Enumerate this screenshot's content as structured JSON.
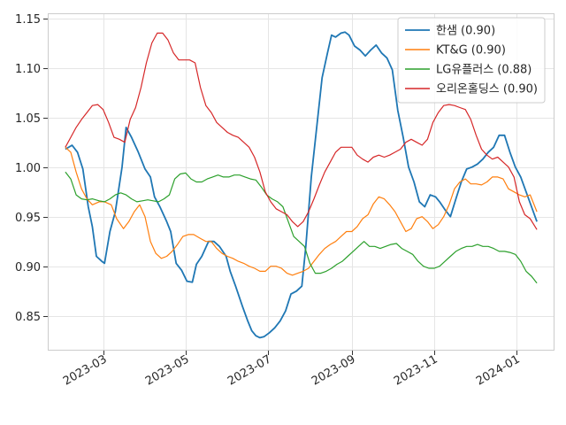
{
  "chart_data": {
    "type": "line",
    "title": "",
    "xlabel": "",
    "ylabel": "",
    "ylim": [
      0.815,
      1.155
    ],
    "xlim": [
      "2023-01-19",
      "2024-01-29"
    ],
    "grid": true,
    "legend_position": "top-right",
    "y_ticks": [
      {
        "value": 0.85,
        "label": "0.85"
      },
      {
        "value": 0.9,
        "label": "0.90"
      },
      {
        "value": 0.95,
        "label": "0.95"
      },
      {
        "value": 1.0,
        "label": "1.00"
      },
      {
        "value": 1.05,
        "label": "1.05"
      },
      {
        "value": 1.1,
        "label": "1.10"
      },
      {
        "value": 1.15,
        "label": "1.15"
      }
    ],
    "x_ticks": [
      {
        "value": "2023-03-01",
        "label": "2023-03"
      },
      {
        "value": "2023-05-01",
        "label": "2023-05"
      },
      {
        "value": "2023-07-01",
        "label": "2023-07"
      },
      {
        "value": "2023-09-01",
        "label": "2023-09"
      },
      {
        "value": "2023-11-01",
        "label": "2023-11"
      },
      {
        "value": "2024-01-01",
        "label": "2024-01"
      }
    ],
    "series": [
      {
        "name": "한샘 (0.90)",
        "color": "#1f77b4",
        "x": [
          "2023-02-01",
          "2023-02-06",
          "2023-02-10",
          "2023-02-14",
          "2023-02-18",
          "2023-02-21",
          "2023-02-24",
          "2023-02-28",
          "2023-03-02",
          "2023-03-06",
          "2023-03-10",
          "2023-03-15",
          "2023-03-18",
          "2023-03-22",
          "2023-03-27",
          "2023-04-01",
          "2023-04-05",
          "2023-04-08",
          "2023-04-12",
          "2023-04-17",
          "2023-04-20",
          "2023-04-24",
          "2023-04-28",
          "2023-05-02",
          "2023-05-06",
          "2023-05-09",
          "2023-05-13",
          "2023-05-18",
          "2023-05-22",
          "2023-05-26",
          "2023-05-31",
          "2023-06-03",
          "2023-06-07",
          "2023-06-12",
          "2023-06-16",
          "2023-06-19",
          "2023-06-22",
          "2023-06-25",
          "2023-06-28",
          "2023-07-02",
          "2023-07-06",
          "2023-07-10",
          "2023-07-14",
          "2023-07-18",
          "2023-07-22",
          "2023-07-26",
          "2023-07-29",
          "2023-08-02",
          "2023-08-06",
          "2023-08-10",
          "2023-08-14",
          "2023-08-17",
          "2023-08-20",
          "2023-08-24",
          "2023-08-27",
          "2023-08-30",
          "2023-09-03",
          "2023-09-07",
          "2023-09-11",
          "2023-09-15",
          "2023-09-19",
          "2023-09-23",
          "2023-09-27",
          "2023-10-01",
          "2023-10-05",
          "2023-10-09",
          "2023-10-13",
          "2023-10-17",
          "2023-10-21",
          "2023-10-25",
          "2023-10-29",
          "2023-11-02",
          "2023-11-05",
          "2023-11-09",
          "2023-11-13",
          "2023-11-17",
          "2023-11-21",
          "2023-11-25",
          "2023-11-29",
          "2023-12-03",
          "2023-12-07",
          "2023-12-11",
          "2023-12-15",
          "2023-12-19",
          "2023-12-23",
          "2023-12-27",
          "2023-12-31",
          "2024-01-04",
          "2024-01-08",
          "2024-01-12",
          "2024-01-16"
        ],
        "values": [
          1.018,
          1.022,
          1.015,
          0.998,
          0.96,
          0.94,
          0.91,
          0.905,
          0.903,
          0.935,
          0.955,
          1.0,
          1.04,
          1.03,
          1.015,
          0.998,
          0.99,
          0.97,
          0.96,
          0.945,
          0.935,
          0.903,
          0.896,
          0.885,
          0.884,
          0.902,
          0.91,
          0.925,
          0.925,
          0.92,
          0.91,
          0.895,
          0.88,
          0.86,
          0.845,
          0.835,
          0.83,
          0.828,
          0.829,
          0.833,
          0.838,
          0.845,
          0.855,
          0.872,
          0.875,
          0.88,
          0.92,
          0.99,
          1.04,
          1.09,
          1.115,
          1.133,
          1.131,
          1.135,
          1.136,
          1.133,
          1.122,
          1.118,
          1.112,
          1.118,
          1.123,
          1.115,
          1.11,
          1.098,
          1.057,
          1.03,
          1.0,
          0.985,
          0.965,
          0.96,
          0.972,
          0.97,
          0.965,
          0.957,
          0.95,
          0.968,
          0.985,
          0.998,
          1.0,
          1.003,
          1.008,
          1.015,
          1.02,
          1.032,
          1.032,
          1.015,
          1.0,
          0.99,
          0.975,
          0.96,
          0.945
        ]
      },
      {
        "name": "KT&G (0.90)",
        "color": "#ff7f0e",
        "x": [
          "2023-02-01",
          "2023-02-05",
          "2023-02-09",
          "2023-02-13",
          "2023-02-17",
          "2023-02-21",
          "2023-02-26",
          "2023-03-02",
          "2023-03-07",
          "2023-03-11",
          "2023-03-16",
          "2023-03-20",
          "2023-03-24",
          "2023-03-28",
          "2023-04-01",
          "2023-04-05",
          "2023-04-09",
          "2023-04-13",
          "2023-04-17",
          "2023-04-21",
          "2023-04-25",
          "2023-04-29",
          "2023-05-03",
          "2023-05-07",
          "2023-05-12",
          "2023-05-16",
          "2023-05-20",
          "2023-05-24",
          "2023-05-28",
          "2023-06-01",
          "2023-06-05",
          "2023-06-09",
          "2023-06-13",
          "2023-06-17",
          "2023-06-21",
          "2023-06-25",
          "2023-06-29",
          "2023-07-03",
          "2023-07-07",
          "2023-07-11",
          "2023-07-15",
          "2023-07-19",
          "2023-07-23",
          "2023-07-27",
          "2023-07-31",
          "2023-08-04",
          "2023-08-08",
          "2023-08-12",
          "2023-08-16",
          "2023-08-20",
          "2023-08-24",
          "2023-08-28",
          "2023-09-01",
          "2023-09-05",
          "2023-09-09",
          "2023-09-13",
          "2023-09-17",
          "2023-09-21",
          "2023-09-25",
          "2023-09-29",
          "2023-10-03",
          "2023-10-07",
          "2023-10-11",
          "2023-10-15",
          "2023-10-19",
          "2023-10-23",
          "2023-10-27",
          "2023-10-31",
          "2023-11-04",
          "2023-11-08",
          "2023-11-12",
          "2023-11-16",
          "2023-11-20",
          "2023-11-24",
          "2023-11-28",
          "2023-12-02",
          "2023-12-06",
          "2023-12-10",
          "2023-12-14",
          "2023-12-18",
          "2023-12-22",
          "2023-12-26",
          "2023-12-30",
          "2024-01-03",
          "2024-01-07",
          "2024-01-11",
          "2024-01-16"
        ],
        "values": [
          1.02,
          1.015,
          0.995,
          0.978,
          0.968,
          0.962,
          0.965,
          0.965,
          0.962,
          0.948,
          0.938,
          0.945,
          0.955,
          0.962,
          0.95,
          0.925,
          0.913,
          0.908,
          0.91,
          0.915,
          0.922,
          0.93,
          0.932,
          0.932,
          0.928,
          0.925,
          0.925,
          0.918,
          0.913,
          0.91,
          0.908,
          0.905,
          0.903,
          0.9,
          0.898,
          0.895,
          0.895,
          0.9,
          0.9,
          0.898,
          0.893,
          0.891,
          0.893,
          0.895,
          0.898,
          0.905,
          0.912,
          0.918,
          0.922,
          0.925,
          0.93,
          0.935,
          0.935,
          0.94,
          0.948,
          0.952,
          0.963,
          0.97,
          0.968,
          0.962,
          0.955,
          0.945,
          0.935,
          0.938,
          0.948,
          0.95,
          0.945,
          0.938,
          0.942,
          0.95,
          0.962,
          0.978,
          0.985,
          0.988,
          0.983,
          0.983,
          0.982,
          0.985,
          0.99,
          0.99,
          0.988,
          0.978,
          0.975,
          0.972,
          0.97,
          0.972,
          0.955
        ]
      },
      {
        "name": "LG유플러스 (0.88)",
        "color": "#2ca02c",
        "x": [
          "2023-02-01",
          "2023-02-05",
          "2023-02-09",
          "2023-02-13",
          "2023-02-17",
          "2023-02-21",
          "2023-02-26",
          "2023-03-02",
          "2023-03-06",
          "2023-03-10",
          "2023-03-14",
          "2023-03-18",
          "2023-03-22",
          "2023-03-26",
          "2023-03-30",
          "2023-04-03",
          "2023-04-07",
          "2023-04-11",
          "2023-04-15",
          "2023-04-19",
          "2023-04-23",
          "2023-04-27",
          "2023-05-01",
          "2023-05-05",
          "2023-05-09",
          "2023-05-13",
          "2023-05-17",
          "2023-05-21",
          "2023-05-25",
          "2023-05-29",
          "2023-06-02",
          "2023-06-06",
          "2023-06-10",
          "2023-06-14",
          "2023-06-18",
          "2023-06-22",
          "2023-06-26",
          "2023-06-30",
          "2023-07-04",
          "2023-07-08",
          "2023-07-12",
          "2023-07-16",
          "2023-07-20",
          "2023-07-24",
          "2023-07-28",
          "2023-08-01",
          "2023-08-05",
          "2023-08-09",
          "2023-08-13",
          "2023-08-17",
          "2023-08-21",
          "2023-08-25",
          "2023-08-29",
          "2023-09-02",
          "2023-09-06",
          "2023-09-10",
          "2023-09-14",
          "2023-09-18",
          "2023-09-22",
          "2023-09-26",
          "2023-09-30",
          "2023-10-04",
          "2023-10-08",
          "2023-10-12",
          "2023-10-16",
          "2023-10-20",
          "2023-10-24",
          "2023-10-28",
          "2023-11-01",
          "2023-11-05",
          "2023-11-09",
          "2023-11-13",
          "2023-11-17",
          "2023-11-21",
          "2023-11-25",
          "2023-11-29",
          "2023-12-03",
          "2023-12-07",
          "2023-12-11",
          "2023-12-15",
          "2023-12-19",
          "2023-12-23",
          "2023-12-27",
          "2023-12-31",
          "2024-01-04",
          "2024-01-08",
          "2024-01-12",
          "2024-01-16"
        ],
        "values": [
          0.995,
          0.988,
          0.972,
          0.968,
          0.967,
          0.968,
          0.966,
          0.965,
          0.968,
          0.972,
          0.974,
          0.972,
          0.968,
          0.965,
          0.966,
          0.967,
          0.966,
          0.965,
          0.968,
          0.972,
          0.988,
          0.993,
          0.994,
          0.988,
          0.985,
          0.985,
          0.988,
          0.99,
          0.992,
          0.99,
          0.99,
          0.992,
          0.992,
          0.99,
          0.988,
          0.987,
          0.98,
          0.972,
          0.968,
          0.965,
          0.96,
          0.945,
          0.93,
          0.925,
          0.92,
          0.903,
          0.893,
          0.893,
          0.895,
          0.898,
          0.902,
          0.905,
          0.91,
          0.915,
          0.92,
          0.925,
          0.92,
          0.92,
          0.918,
          0.92,
          0.922,
          0.923,
          0.918,
          0.915,
          0.912,
          0.905,
          0.9,
          0.898,
          0.898,
          0.9,
          0.905,
          0.91,
          0.915,
          0.918,
          0.92,
          0.92,
          0.922,
          0.92,
          0.92,
          0.918,
          0.915,
          0.915,
          0.914,
          0.912,
          0.905,
          0.895,
          0.89,
          0.883
        ]
      },
      {
        "name": "오리온홀딩스 (0.90)",
        "color": "#d62728",
        "x": [
          "2023-02-01",
          "2023-02-05",
          "2023-02-09",
          "2023-02-13",
          "2023-02-17",
          "2023-02-21",
          "2023-02-25",
          "2023-03-01",
          "2023-03-05",
          "2023-03-09",
          "2023-03-13",
          "2023-03-17",
          "2023-03-21",
          "2023-03-25",
          "2023-03-29",
          "2023-04-02",
          "2023-04-06",
          "2023-04-10",
          "2023-04-14",
          "2023-04-18",
          "2023-04-22",
          "2023-04-26",
          "2023-04-30",
          "2023-05-04",
          "2023-05-08",
          "2023-05-12",
          "2023-05-16",
          "2023-05-20",
          "2023-05-24",
          "2023-05-28",
          "2023-06-01",
          "2023-06-05",
          "2023-06-09",
          "2023-06-13",
          "2023-06-17",
          "2023-06-21",
          "2023-06-25",
          "2023-06-29",
          "2023-07-03",
          "2023-07-07",
          "2023-07-11",
          "2023-07-15",
          "2023-07-19",
          "2023-07-23",
          "2023-07-27",
          "2023-07-31",
          "2023-08-04",
          "2023-08-08",
          "2023-08-12",
          "2023-08-16",
          "2023-08-20",
          "2023-08-24",
          "2023-08-28",
          "2023-09-01",
          "2023-09-05",
          "2023-09-09",
          "2023-09-13",
          "2023-09-17",
          "2023-09-21",
          "2023-09-25",
          "2023-09-29",
          "2023-10-03",
          "2023-10-07",
          "2023-10-11",
          "2023-10-15",
          "2023-10-19",
          "2023-10-23",
          "2023-10-27",
          "2023-10-31",
          "2023-11-04",
          "2023-11-08",
          "2023-11-12",
          "2023-11-16",
          "2023-11-20",
          "2023-11-24",
          "2023-11-28",
          "2023-12-02",
          "2023-12-06",
          "2023-12-10",
          "2023-12-14",
          "2023-12-18",
          "2023-12-22",
          "2023-12-26",
          "2023-12-30",
          "2024-01-03",
          "2024-01-07",
          "2024-01-11",
          "2024-01-16"
        ],
        "values": [
          1.02,
          1.03,
          1.04,
          1.048,
          1.055,
          1.062,
          1.063,
          1.058,
          1.045,
          1.03,
          1.028,
          1.025,
          1.048,
          1.06,
          1.08,
          1.105,
          1.125,
          1.135,
          1.135,
          1.128,
          1.115,
          1.108,
          1.108,
          1.108,
          1.105,
          1.08,
          1.062,
          1.055,
          1.045,
          1.04,
          1.035,
          1.032,
          1.03,
          1.025,
          1.02,
          1.01,
          0.995,
          0.975,
          0.965,
          0.958,
          0.955,
          0.952,
          0.945,
          0.94,
          0.945,
          0.955,
          0.968,
          0.982,
          0.995,
          1.005,
          1.015,
          1.02,
          1.02,
          1.02,
          1.012,
          1.008,
          1.005,
          1.01,
          1.012,
          1.01,
          1.012,
          1.015,
          1.018,
          1.025,
          1.028,
          1.025,
          1.022,
          1.028,
          1.045,
          1.055,
          1.062,
          1.063,
          1.062,
          1.06,
          1.058,
          1.048,
          1.032,
          1.018,
          1.012,
          1.008,
          1.01,
          1.005,
          1.0,
          0.99,
          0.965,
          0.952,
          0.948,
          0.937
        ]
      }
    ]
  }
}
